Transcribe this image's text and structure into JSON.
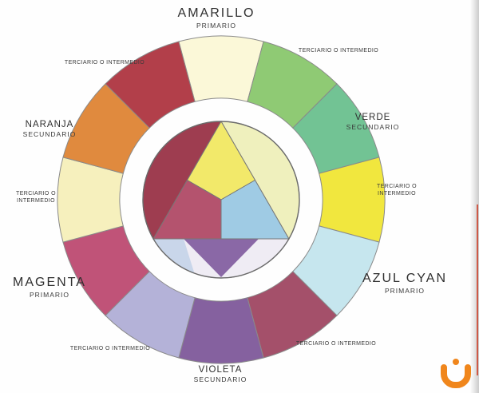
{
  "page": {
    "background": "#fefefe"
  },
  "wheel": {
    "segments": [
      {
        "name": "amarillo-primario",
        "color": "#fbf8d8"
      },
      {
        "name": "terciario-amarillo-verde",
        "color": "#8fca74"
      },
      {
        "name": "verde-secundario",
        "color": "#72c394"
      },
      {
        "name": "terciario-verde-azul",
        "color": "#f1e73e"
      },
      {
        "name": "azul-cyan-primario",
        "color": "#c6e6ee"
      },
      {
        "name": "terciario-azul-violeta",
        "color": "#a4506a"
      },
      {
        "name": "violeta-secundario",
        "color": "#85619f"
      },
      {
        "name": "terciario-violeta-magenta",
        "color": "#b4b2d8"
      },
      {
        "name": "magenta-primario",
        "color": "#c05378"
      },
      {
        "name": "terciario-magenta-naranja",
        "color": "#f6f0bd"
      },
      {
        "name": "naranja-secundario",
        "color": "#e08a3e"
      },
      {
        "name": "terciario-naranja-amarillo",
        "color": "#b23f4a"
      }
    ],
    "inner": {
      "top_quad": "#f2e96a",
      "left_quad": "#b4536e",
      "right_quad": "#9fcbe4",
      "left_segment": "#9e3d50",
      "right_segment": "#eff0bd",
      "bottom_segment": "#efecf4",
      "bottom_violet": "#8a68a6",
      "bottom_blue": "#c9d6ea",
      "outline": "#6a6a6a"
    }
  },
  "labels": {
    "amarillo": {
      "title": "AMARILLO",
      "subtitle": "PRIMARIO"
    },
    "verde": {
      "title": "VERDE",
      "subtitle": "SECUNDARIO"
    },
    "azul_cyan": {
      "title": "AZUL CYAN",
      "subtitle": "PRIMARIO"
    },
    "violeta": {
      "title": "VIOLETA",
      "subtitle": "SECUNDARIO"
    },
    "magenta": {
      "title": "MAGENTA",
      "subtitle": "PRIMARIO"
    },
    "naranja": {
      "title": "NARANJA",
      "subtitle": "SECUNDARIO"
    },
    "terciario_single": "TERCIARIO O INTERMEDIO",
    "terciario_line1": "TERCIARIO O",
    "terciario_line2": "INTERMEDIO"
  },
  "logo": {
    "color": "#f0861c"
  }
}
